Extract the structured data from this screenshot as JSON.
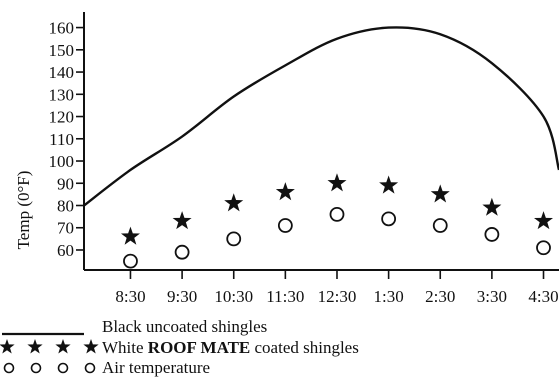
{
  "chart_data": {
    "type": "line",
    "xlabel": "",
    "ylabel": "Temp (0°F)",
    "y_ticks": [
      60,
      70,
      80,
      90,
      100,
      110,
      120,
      130,
      140,
      150,
      160
    ],
    "x_tick_labels": [
      "8:30",
      "9:30",
      "10:30",
      "11:30",
      "12:30",
      "1:30",
      "2:30",
      "3:30",
      "4:30"
    ],
    "y_axis_min": 51,
    "y_axis_max": 167,
    "x_axis_range": [
      7.6,
      16.8
    ],
    "grid": false,
    "legend_position": "bottom-left",
    "series": [
      {
        "name": "Black uncoated shingles",
        "marker": "line",
        "x": [
          7.6,
          8.5,
          9.5,
          10.5,
          11.5,
          12.5,
          13.5,
          14.5,
          15.5,
          16.5,
          16.8
        ],
        "y": [
          80,
          96,
          111,
          129,
          143,
          155,
          160,
          157,
          144,
          120,
          96
        ]
      },
      {
        "name": "White ROOF MATE coated shingles",
        "marker": "star",
        "x": [
          8.5,
          9.5,
          10.5,
          11.5,
          12.5,
          13.5,
          14.5,
          15.5,
          16.5
        ],
        "y": [
          66,
          73,
          81,
          86,
          90,
          89,
          85,
          79,
          73
        ]
      },
      {
        "name": "Air temperature",
        "marker": "circle",
        "x": [
          8.5,
          9.5,
          10.5,
          11.5,
          12.5,
          13.5,
          14.5,
          15.5,
          16.5
        ],
        "y": [
          55,
          59,
          65,
          71,
          76,
          74,
          71,
          67,
          61
        ]
      }
    ]
  },
  "legend": {
    "line_label": "Black uncoated shingles",
    "star_label_prefix": "White ",
    "star_label_bold": "ROOF MATE",
    "star_label_suffix": " coated shingles",
    "circle_label": "Air temperature"
  }
}
